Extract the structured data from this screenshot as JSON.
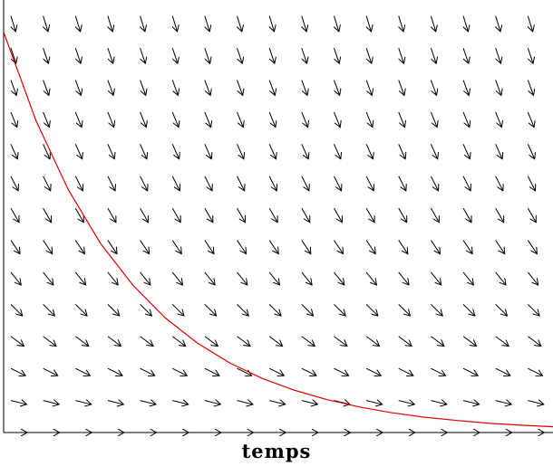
{
  "chart_data": {
    "type": "line",
    "subtype": "direction-field",
    "title": "",
    "xlabel": "temps",
    "ylabel": "",
    "xlim": [
      0,
      17
    ],
    "ylim": [
      0,
      13.5
    ],
    "grid": false,
    "legend": "none",
    "field": {
      "equation": "dy/dt = -k*y",
      "k": 0.25,
      "x_step": 1,
      "y_step": 1,
      "color": "#000000"
    },
    "series": [
      {
        "type": "line",
        "color": "#e00000",
        "x": [
          0,
          1,
          2,
          3,
          4,
          5,
          6,
          7,
          8,
          9,
          10,
          11,
          12,
          13,
          14,
          15,
          16,
          17
        ],
        "y": [
          12.5,
          9.74,
          7.58,
          5.9,
          4.6,
          3.58,
          2.79,
          2.17,
          1.69,
          1.32,
          1.03,
          0.8,
          0.62,
          0.48,
          0.38,
          0.29,
          0.23,
          0.18
        ]
      }
    ]
  }
}
